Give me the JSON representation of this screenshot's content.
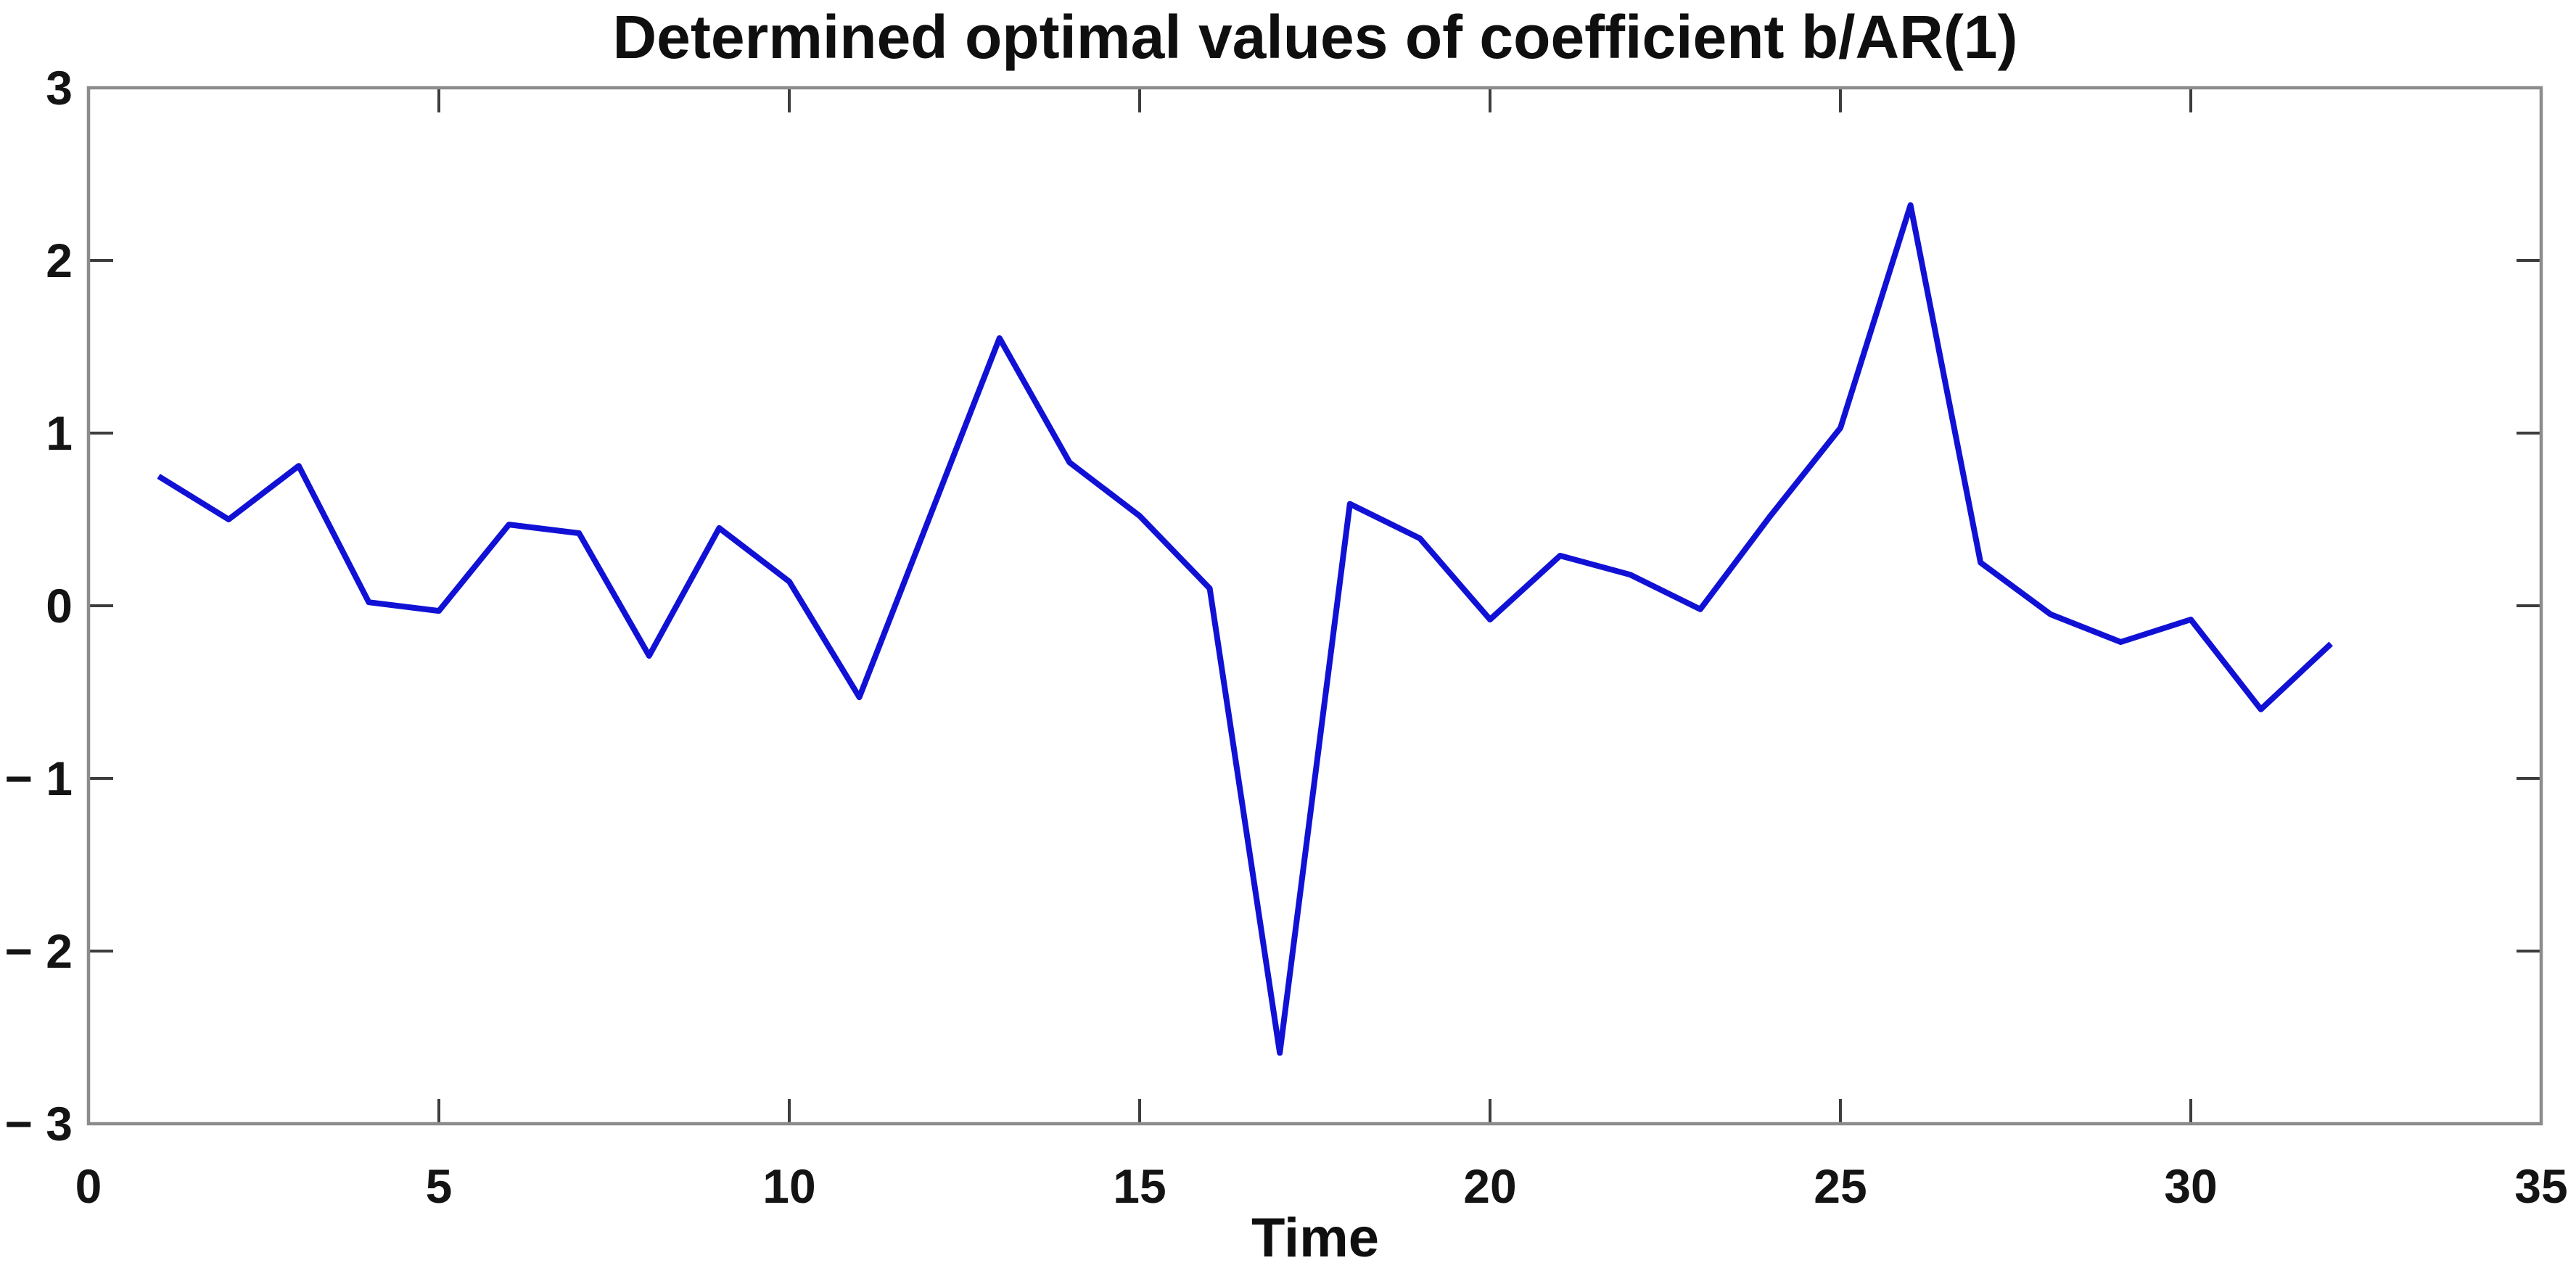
{
  "title": "Determined optimal values of coefficient b/AR(1)",
  "chart_data": {
    "type": "line",
    "title": "Determined optimal values of coefficient b/AR(1)",
    "xlabel": "Time",
    "ylabel": "",
    "x": [
      1,
      2,
      3,
      4,
      5,
      6,
      7,
      8,
      9,
      10,
      11,
      12,
      13,
      14,
      15,
      16,
      17,
      18,
      19,
      20,
      21,
      22,
      23,
      24,
      25,
      26,
      27,
      28,
      29,
      30,
      31,
      32
    ],
    "series": [
      {
        "name": "coefficient b/AR(1)",
        "values": [
          0.75,
          0.5,
          0.81,
          0.02,
          -0.03,
          0.47,
          0.42,
          -0.29,
          0.45,
          0.14,
          -0.53,
          0.51,
          1.55,
          0.83,
          0.52,
          0.1,
          -2.59,
          0.59,
          0.39,
          -0.08,
          0.29,
          0.18,
          -0.02,
          0.52,
          1.03,
          2.32,
          0.25,
          -0.05,
          -0.21,
          -0.08,
          -0.6,
          -0.22
        ]
      }
    ],
    "xlim": [
      0,
      35
    ],
    "ylim": [
      -3,
      3
    ],
    "x_ticks": [
      0,
      5,
      10,
      15,
      20,
      25,
      30,
      35
    ],
    "x_tick_labels": [
      "0",
      "5",
      "10",
      "15",
      "20",
      "25",
      "30",
      "35"
    ],
    "y_ticks": [
      -3,
      -2,
      -1,
      0,
      1,
      2,
      3
    ],
    "y_tick_labels": [
      "− 3",
      "− 2",
      "− 1",
      "0",
      "1",
      "2",
      "3"
    ],
    "grid": false,
    "legend_position": "none"
  },
  "style": {
    "line_color": "#1111d6",
    "box_color": "#8c8c8c",
    "tick_color": "#3d3d3d",
    "text_color": "#141414",
    "background": "#ffffff"
  }
}
